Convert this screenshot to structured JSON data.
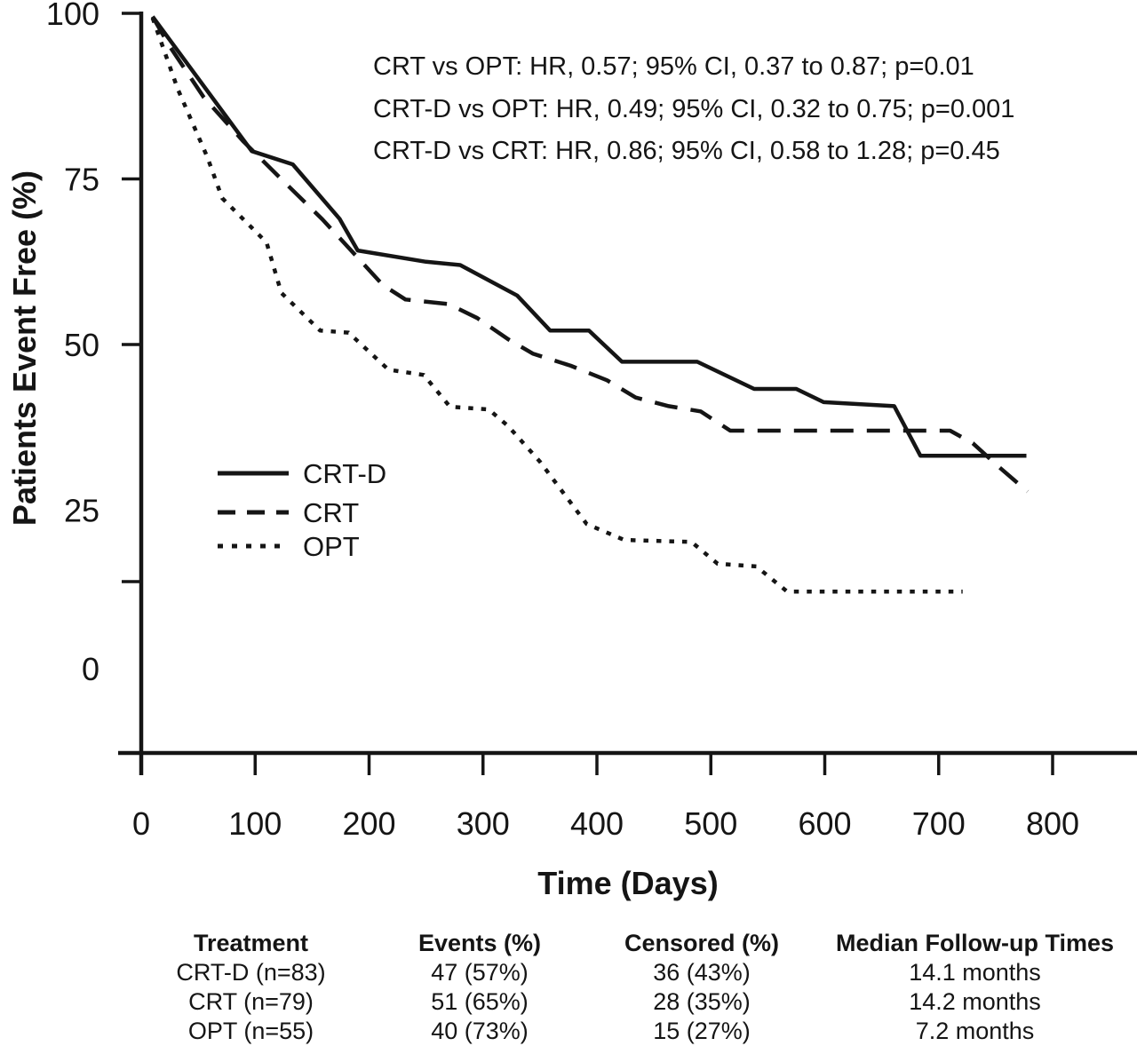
{
  "figure": {
    "x_axis_title": "Time (Days)",
    "y_axis_title": "Patients Event Free (%)"
  },
  "annotations": [
    "CRT vs OPT: HR, 0.57; 95% CI, 0.37 to 0.87; p=0.01",
    "CRT-D vs OPT: HR, 0.49; 95% CI, 0.32 to 0.75; p=0.001",
    "CRT-D vs CRT: HR, 0.86; 95% CI, 0.58 to 1.28; p=0.45"
  ],
  "legend": {
    "items": [
      {
        "label": "CRT-D",
        "style": "solid"
      },
      {
        "label": "CRT",
        "style": "dashed"
      },
      {
        "label": "OPT",
        "style": "dotted"
      }
    ]
  },
  "colors": {
    "ink": "#151515",
    "background": "#ffffff"
  },
  "chart_data": {
    "type": "line",
    "subtype": "kaplan-meier",
    "title": "",
    "xlabel": "Time (Days)",
    "ylabel": "Patients Event Free (%)",
    "xlim": [
      0,
      875
    ],
    "ylim": [
      0,
      100
    ],
    "grid": false,
    "legend_position": "inside-left-middle",
    "x_ticks": [
      0,
      100,
      200,
      300,
      400,
      500,
      600,
      700,
      800
    ],
    "y_ticks": [
      100,
      75,
      50,
      25,
      0
    ],
    "series": [
      {
        "name": "CRT-D",
        "style": "solid",
        "points": [
          [
            10,
            99.5
          ],
          [
            97,
            79.2
          ],
          [
            133,
            77.2
          ],
          [
            174,
            69
          ],
          [
            190,
            64.2
          ],
          [
            250,
            62.5
          ],
          [
            280,
            62
          ],
          [
            330,
            57.4
          ],
          [
            359,
            52.1
          ],
          [
            393,
            52.1
          ],
          [
            422,
            47.4
          ],
          [
            488,
            47.4
          ],
          [
            538,
            43.3
          ],
          [
            575,
            43.3
          ],
          [
            599,
            41.3
          ],
          [
            661,
            40.7
          ],
          [
            684,
            33.2
          ],
          [
            777,
            33.2
          ]
        ]
      },
      {
        "name": "CRT",
        "style": "dashed",
        "points": [
          [
            10,
            99.5
          ],
          [
            25,
            95
          ],
          [
            55,
            87.3
          ],
          [
            90,
            80.6
          ],
          [
            124,
            74.8
          ],
          [
            159,
            68.9
          ],
          [
            188,
            63.5
          ],
          [
            212,
            59
          ],
          [
            232,
            56.8
          ],
          [
            270,
            56.1
          ],
          [
            295,
            54
          ],
          [
            322,
            50.8
          ],
          [
            344,
            48.6
          ],
          [
            377,
            46.8
          ],
          [
            409,
            44.6
          ],
          [
            434,
            42
          ],
          [
            463,
            40.7
          ],
          [
            491,
            39.9
          ],
          [
            517,
            37
          ],
          [
            710,
            37
          ],
          [
            730,
            35.1
          ],
          [
            753,
            31.5
          ],
          [
            778,
            27.8
          ]
        ]
      },
      {
        "name": "OPT",
        "style": "dotted",
        "points": [
          [
            10,
            99.3
          ],
          [
            32,
            88.6
          ],
          [
            58,
            78.3
          ],
          [
            71,
            72.1
          ],
          [
            110,
            65.4
          ],
          [
            123,
            57.8
          ],
          [
            157,
            52.1
          ],
          [
            182,
            51.8
          ],
          [
            217,
            46.2
          ],
          [
            248,
            45.4
          ],
          [
            271,
            40.6
          ],
          [
            305,
            40.2
          ],
          [
            322,
            37.7
          ],
          [
            350,
            32.3
          ],
          [
            391,
            22.9
          ],
          [
            424,
            20.5
          ],
          [
            483,
            20.2
          ],
          [
            506,
            16.9
          ],
          [
            540,
            16.5
          ],
          [
            567,
            12.7
          ],
          [
            721,
            12.7
          ]
        ]
      }
    ]
  },
  "table": {
    "headers": [
      "Treatment",
      "Events (%)",
      "Censored (%)",
      "Median Follow-up Times"
    ],
    "rows": [
      {
        "treatment": "CRT-D (n=83)",
        "events": "47 (57%)",
        "censored": "36 (43%)",
        "followup": "14.1 months"
      },
      {
        "treatment": "CRT (n=79)",
        "events": "51 (65%)",
        "censored": "28 (35%)",
        "followup": "14.2 months"
      },
      {
        "treatment": "OPT (n=55)",
        "events": "40 (73%)",
        "censored": "15 (27%)",
        "followup": "7.2 months"
      }
    ]
  }
}
